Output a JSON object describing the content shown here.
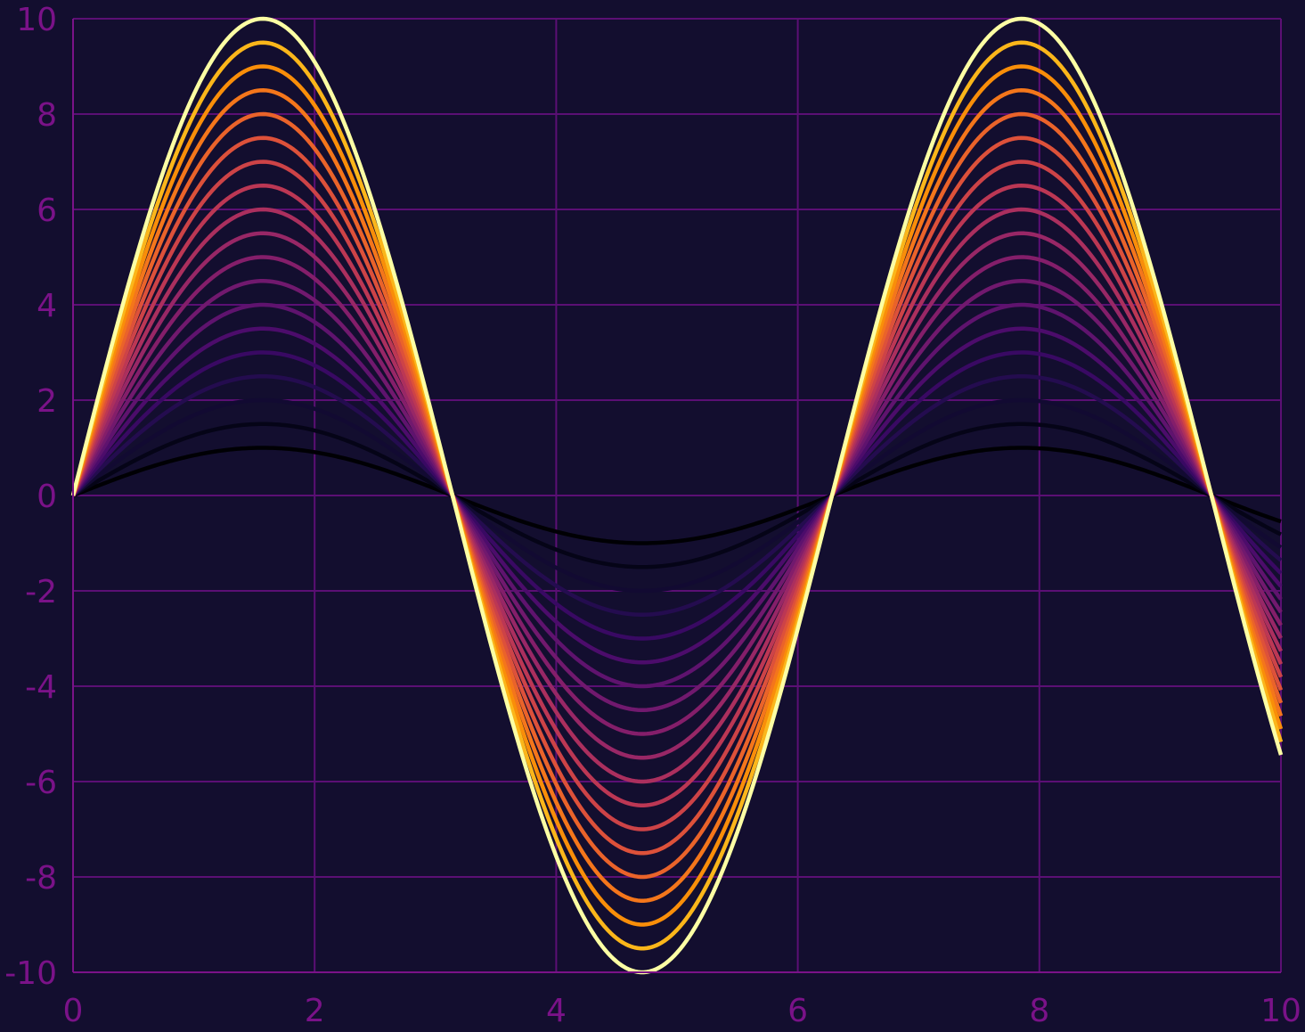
{
  "chart_data": {
    "type": "line",
    "function": "y = A * sin(x)",
    "x_range": [
      0,
      10
    ],
    "xlim": [
      0,
      10
    ],
    "ylim": [
      -10,
      10
    ],
    "x_ticks": [
      "0",
      "2",
      "4",
      "6",
      "8",
      "10"
    ],
    "y_ticks": [
      "-10",
      "-8",
      "-6",
      "-4",
      "-2",
      "0",
      "2",
      "4",
      "6",
      "8",
      "10"
    ],
    "grid": true,
    "colormap": "inferno",
    "series": [
      {
        "amplitude": 1.0,
        "color": "#000004"
      },
      {
        "amplitude": 1.5,
        "color": "#050417"
      },
      {
        "amplitude": 2.0,
        "color": "#120a32"
      },
      {
        "amplitude": 2.5,
        "color": "#240c4f"
      },
      {
        "amplitude": 3.0,
        "color": "#390963"
      },
      {
        "amplitude": 3.5,
        "color": "#4c0c6b"
      },
      {
        "amplitude": 4.0,
        "color": "#5f136e"
      },
      {
        "amplitude": 4.5,
        "color": "#71196e"
      },
      {
        "amplitude": 5.0,
        "color": "#841e6a"
      },
      {
        "amplitude": 5.5,
        "color": "#982766"
      },
      {
        "amplitude": 6.0,
        "color": "#ab2f5e"
      },
      {
        "amplitude": 6.5,
        "color": "#bc3754"
      },
      {
        "amplitude": 7.0,
        "color": "#cd4347"
      },
      {
        "amplitude": 7.5,
        "color": "#dd513a"
      },
      {
        "amplitude": 8.0,
        "color": "#ea632a"
      },
      {
        "amplitude": 8.5,
        "color": "#f4761b"
      },
      {
        "amplitude": 9.0,
        "color": "#f98e09"
      },
      {
        "amplitude": 9.5,
        "color": "#fbb61a"
      },
      {
        "amplitude": 10.0,
        "color": "#fcffa4"
      }
    ]
  },
  "colors": {
    "background": "#130e2f",
    "grid": "#5b0f74",
    "axis": "#7a1288",
    "tick_label": "#7a1288"
  }
}
